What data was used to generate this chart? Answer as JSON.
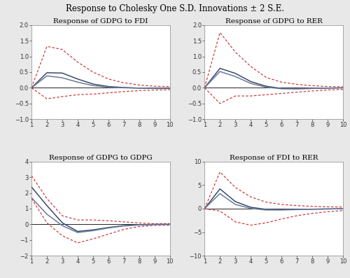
{
  "title": "Response to Cholesky One S.D. Innovations ± 2 S.E.",
  "title_fontsize": 8.5,
  "subplot_title_fontsize": 7.5,
  "x": [
    1,
    2,
    3,
    4,
    5,
    6,
    7,
    8,
    9,
    10
  ],
  "subplots": [
    {
      "title": "Response of GDPG to FDI",
      "ylim": [
        -1.0,
        2.0
      ],
      "yticks": [
        -1.0,
        -0.5,
        0.0,
        0.5,
        1.0,
        1.5,
        2.0
      ],
      "center1": [
        0.0,
        0.48,
        0.47,
        0.28,
        0.12,
        0.04,
        0.01,
        -0.01,
        -0.02,
        -0.02
      ],
      "center2": [
        0.0,
        0.38,
        0.32,
        0.18,
        0.07,
        0.02,
        0.0,
        -0.01,
        -0.02,
        -0.02
      ],
      "upper": [
        0.0,
        1.32,
        1.22,
        0.82,
        0.5,
        0.28,
        0.16,
        0.09,
        0.05,
        0.04
      ],
      "lower": [
        0.0,
        -0.35,
        -0.28,
        -0.22,
        -0.2,
        -0.16,
        -0.12,
        -0.09,
        -0.07,
        -0.06
      ]
    },
    {
      "title": "Response of GDPG to RER",
      "ylim": [
        -1.0,
        2.0
      ],
      "yticks": [
        -1.0,
        -0.5,
        0.0,
        0.5,
        1.0,
        1.5,
        2.0
      ],
      "center1": [
        0.0,
        0.62,
        0.46,
        0.2,
        0.05,
        -0.02,
        -0.03,
        -0.02,
        -0.01,
        0.0
      ],
      "center2": [
        0.0,
        0.52,
        0.36,
        0.14,
        0.02,
        -0.03,
        -0.03,
        -0.02,
        -0.01,
        0.0
      ],
      "upper": [
        0.0,
        1.76,
        1.14,
        0.68,
        0.33,
        0.18,
        0.11,
        0.07,
        0.04,
        0.03
      ],
      "lower": [
        0.0,
        -0.5,
        -0.26,
        -0.26,
        -0.22,
        -0.18,
        -0.14,
        -0.1,
        -0.07,
        -0.05
      ]
    },
    {
      "title": "Response of GDPG to GDPG",
      "ylim": [
        -2.0,
        4.0
      ],
      "yticks": [
        -2,
        -1,
        0,
        1,
        2,
        3,
        4
      ],
      "center1": [
        2.38,
        1.2,
        0.1,
        -0.45,
        -0.35,
        -0.2,
        -0.08,
        -0.02,
        0.0,
        0.0
      ],
      "center2": [
        1.7,
        0.65,
        -0.08,
        -0.52,
        -0.4,
        -0.23,
        -0.1,
        -0.04,
        -0.01,
        0.0
      ],
      "upper": [
        3.1,
        1.65,
        0.55,
        0.28,
        0.28,
        0.23,
        0.16,
        0.09,
        0.04,
        0.05
      ],
      "lower": [
        1.65,
        0.1,
        -0.72,
        -1.18,
        -0.92,
        -0.62,
        -0.32,
        -0.14,
        -0.06,
        -0.05
      ]
    },
    {
      "title": "Response of FDI to RER",
      "ylim": [
        -10.0,
        10.0
      ],
      "yticks": [
        -10,
        -5,
        0,
        5,
        10
      ],
      "center1": [
        0.0,
        4.2,
        1.5,
        0.3,
        -0.15,
        -0.2,
        -0.15,
        -0.1,
        -0.05,
        0.0
      ],
      "center2": [
        0.0,
        3.2,
        0.9,
        0.05,
        -0.28,
        -0.28,
        -0.2,
        -0.13,
        -0.07,
        -0.02
      ],
      "upper": [
        0.0,
        7.8,
        4.5,
        2.5,
        1.4,
        0.9,
        0.65,
        0.5,
        0.4,
        0.35
      ],
      "lower": [
        0.0,
        -0.5,
        -2.8,
        -3.5,
        -3.0,
        -2.2,
        -1.5,
        -1.0,
        -0.65,
        -0.4
      ]
    }
  ],
  "line_color1": "#3a4a6a",
  "line_color2": "#6a7a9a",
  "ci_color": "#cc3333",
  "bg_color": "#ffffff",
  "plot_bg": "#ffffff",
  "outer_bg": "#e8e8e8"
}
